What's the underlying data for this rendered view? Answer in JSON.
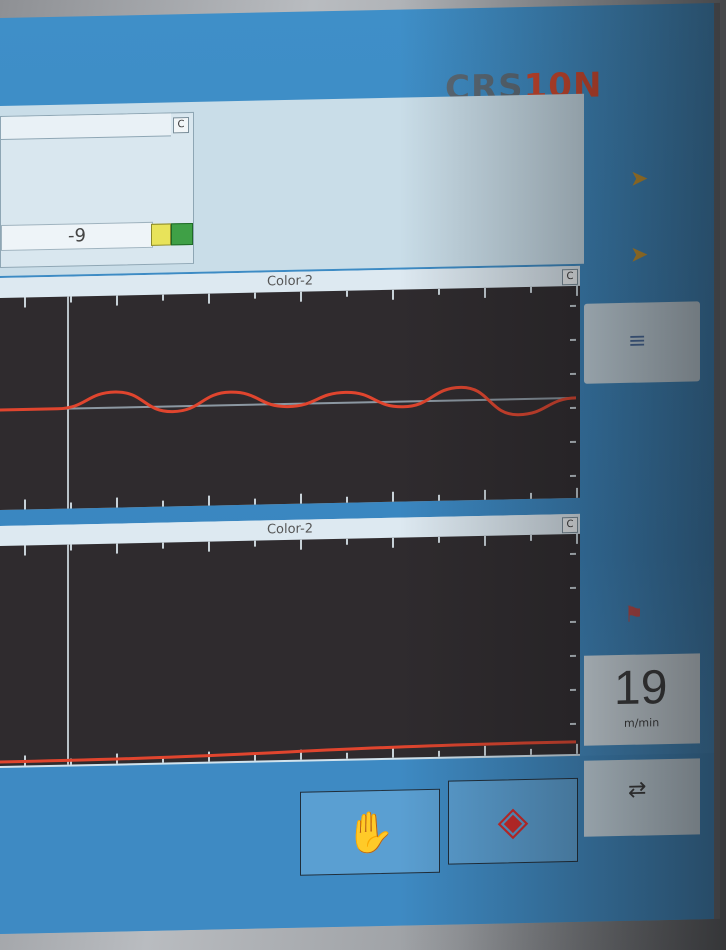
{
  "brand": {
    "logo_prefix": "CRS",
    "logo_suffix": "10N"
  },
  "top_panel": {
    "c_label": "C",
    "value": "-9"
  },
  "charts": [
    {
      "title": "Color-2",
      "c_label": "C"
    },
    {
      "title": "Color-2",
      "c_label": "C"
    }
  ],
  "chart_data": [
    {
      "type": "line",
      "title": "Color-2",
      "x": [
        0,
        10,
        20,
        30,
        40,
        50,
        60,
        70,
        80,
        90,
        100
      ],
      "series": [
        {
          "values": [
            0,
            0,
            6,
            -2,
            5,
            -1,
            4,
            -2,
            5,
            -6,
            0
          ]
        }
      ],
      "colors": [
        "#e0452e"
      ],
      "grid": false
    },
    {
      "type": "line",
      "title": "Color-2",
      "x": [
        0,
        100
      ],
      "series": [
        {
          "values": [
            -8,
            -4
          ]
        }
      ],
      "colors": [
        "#e0452e"
      ],
      "grid": false
    }
  ],
  "side": {
    "speed_value": "19",
    "speed_unit": "m/min",
    "icons": [
      "arrow-up-icon",
      "arrow-down-icon",
      "layers-icon",
      "flag-icon",
      "repeat-icon"
    ]
  },
  "bottom": {
    "stop_icon": "hand-stop-icon",
    "exit_icon": "exit-diamond-icon"
  },
  "colors": {
    "accent_red": "#d22a2a",
    "screen_blue": "#3e8ac3"
  }
}
